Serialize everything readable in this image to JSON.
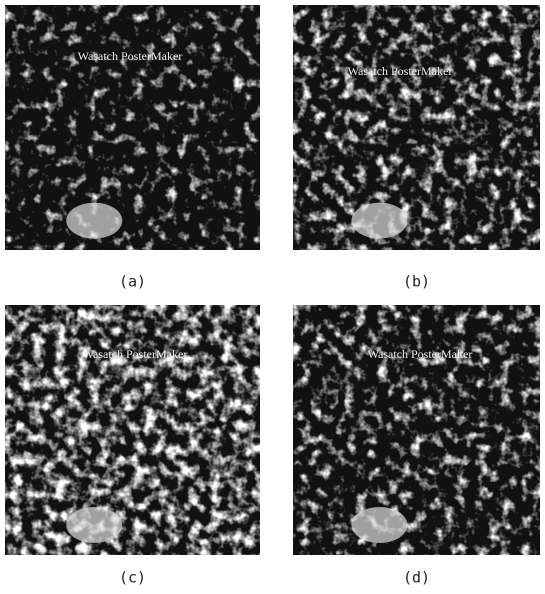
{
  "figure": {
    "panels": [
      {
        "overlay_text": "Wasatch PosterMaker",
        "caption": "(a)"
      },
      {
        "overlay_text": "Wasatch PosterMaker",
        "caption": "(b)"
      },
      {
        "overlay_text": "Wasatch PosterMaker",
        "caption": "(c)"
      },
      {
        "overlay_text": "Wasatch PosterMaker",
        "caption": "(d)"
      }
    ]
  }
}
